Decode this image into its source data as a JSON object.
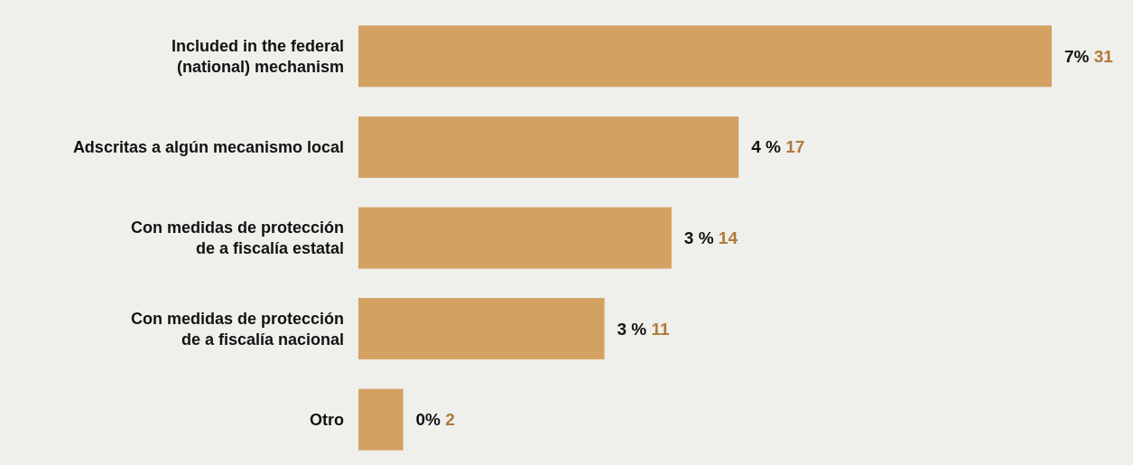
{
  "chart_data": {
    "type": "bar",
    "orientation": "horizontal",
    "categories": [
      "Included in the federal\n(national) mechanism",
      "Adscritas a algún mecanismo local",
      "Con medidas de protección\nde a fiscalía estatal",
      "Con medidas de protección\nde a fiscalía nacional",
      "Otro"
    ],
    "values": [
      31,
      17,
      14,
      11,
      2
    ],
    "value_labels": [
      "7% 31",
      "4 % 17",
      "3 % 14",
      "3 % 11",
      "0% 2"
    ],
    "color": "#d3a262"
  }
}
